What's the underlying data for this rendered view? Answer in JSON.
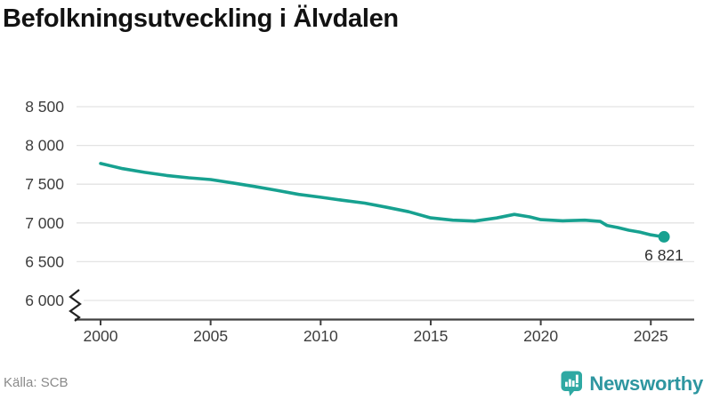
{
  "title": "Befolkningsutveckling i Älvdalen",
  "source": {
    "text": "Källa: SCB"
  },
  "branding": {
    "wordmark": "Newsworthy",
    "icon": "newsworthy-speech-bubble-bar-chart-icon",
    "icon_color": "#2ea9a3",
    "wordmark_color": "#2e96a0"
  },
  "colors": {
    "line": "#17a190",
    "grid": "#e3e3e3",
    "axis": "#404040",
    "tick_label": "#3d3d3d",
    "title": "#121212",
    "annotation": "#2e2e2e",
    "source_text": "#8a8a8a",
    "axis_break": "#222222"
  },
  "chart_data": {
    "type": "line",
    "title": "Befolkningsutveckling i Älvdalen",
    "xlabel": "",
    "ylabel": "",
    "grid": "horizontal",
    "legend": "none",
    "y_axis_break": true,
    "ylim": [
      6000,
      8500
    ],
    "xlim": [
      2000,
      2026
    ],
    "x_ticks": [
      {
        "value": 2000,
        "label": "2000"
      },
      {
        "value": 2005,
        "label": "2005"
      },
      {
        "value": 2010,
        "label": "2010"
      },
      {
        "value": 2015,
        "label": "2015"
      },
      {
        "value": 2020,
        "label": "2020"
      },
      {
        "value": 2025,
        "label": "2025"
      }
    ],
    "y_ticks": [
      {
        "value": 8500,
        "label": "8 500"
      },
      {
        "value": 8000,
        "label": "8 000"
      },
      {
        "value": 7500,
        "label": "7 500"
      },
      {
        "value": 7000,
        "label": "7 000"
      },
      {
        "value": 6500,
        "label": "6 500"
      },
      {
        "value": 6000,
        "label": "6 000"
      }
    ],
    "series": [
      {
        "name": "Befolkning i Älvdalen",
        "points": [
          [
            2000,
            7767
          ],
          [
            2001,
            7701
          ],
          [
            2002,
            7652
          ],
          [
            2003,
            7612
          ],
          [
            2004,
            7582
          ],
          [
            2005,
            7560
          ],
          [
            2006,
            7516
          ],
          [
            2007,
            7470
          ],
          [
            2008,
            7421
          ],
          [
            2009,
            7368
          ],
          [
            2010,
            7331
          ],
          [
            2011,
            7292
          ],
          [
            2012,
            7256
          ],
          [
            2013,
            7202
          ],
          [
            2014,
            7145
          ],
          [
            2015,
            7065
          ],
          [
            2016,
            7036
          ],
          [
            2017,
            7024
          ],
          [
            2018,
            7064
          ],
          [
            2018.8,
            7110
          ],
          [
            2019.5,
            7078
          ],
          [
            2020,
            7042
          ],
          [
            2021,
            7028
          ],
          [
            2022,
            7036
          ],
          [
            2022.7,
            7020
          ],
          [
            2023,
            6968
          ],
          [
            2023.5,
            6940
          ],
          [
            2024,
            6906
          ],
          [
            2024.5,
            6882
          ],
          [
            2025,
            6846
          ],
          [
            2025.3,
            6832
          ],
          [
            2025.6,
            6821
          ]
        ]
      }
    ],
    "end_point": {
      "x": 2025.6,
      "y": 6821,
      "label": "6 821"
    }
  }
}
